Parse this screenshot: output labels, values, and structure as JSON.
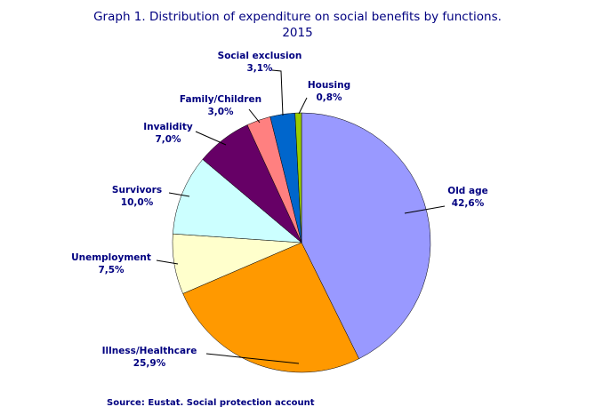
{
  "chart_data": {
    "type": "pie",
    "title_line1": "Graph 1. Distribution of expenditure on social benefits by functions.",
    "title_line2": "2015",
    "slices": [
      {
        "name": "Old age",
        "value": 42.6,
        "value_label": "42,6%",
        "color": "#9999ff"
      },
      {
        "name": "Illness/Healthcare",
        "value": 25.9,
        "value_label": "25,9%",
        "color": "#ff9900"
      },
      {
        "name": "Unemployment",
        "value": 7.5,
        "value_label": "7,5%",
        "color": "#ffffcc"
      },
      {
        "name": "Survivors",
        "value": 10.0,
        "value_label": "10,0%",
        "color": "#ccffff"
      },
      {
        "name": "Invalidity",
        "value": 7.0,
        "value_label": "7,0%",
        "color": "#660066"
      },
      {
        "name": "Family/Children",
        "value": 3.0,
        "value_label": "3,0%",
        "color": "#ff8080"
      },
      {
        "name": "Social exclusion",
        "value": 3.1,
        "value_label": "3,1%",
        "color": "#0066cc"
      },
      {
        "name": "Housing",
        "value": 0.8,
        "value_label": "0,8%",
        "color": "#99cc00"
      }
    ],
    "source": "Source: Eustat. Social protection account"
  }
}
